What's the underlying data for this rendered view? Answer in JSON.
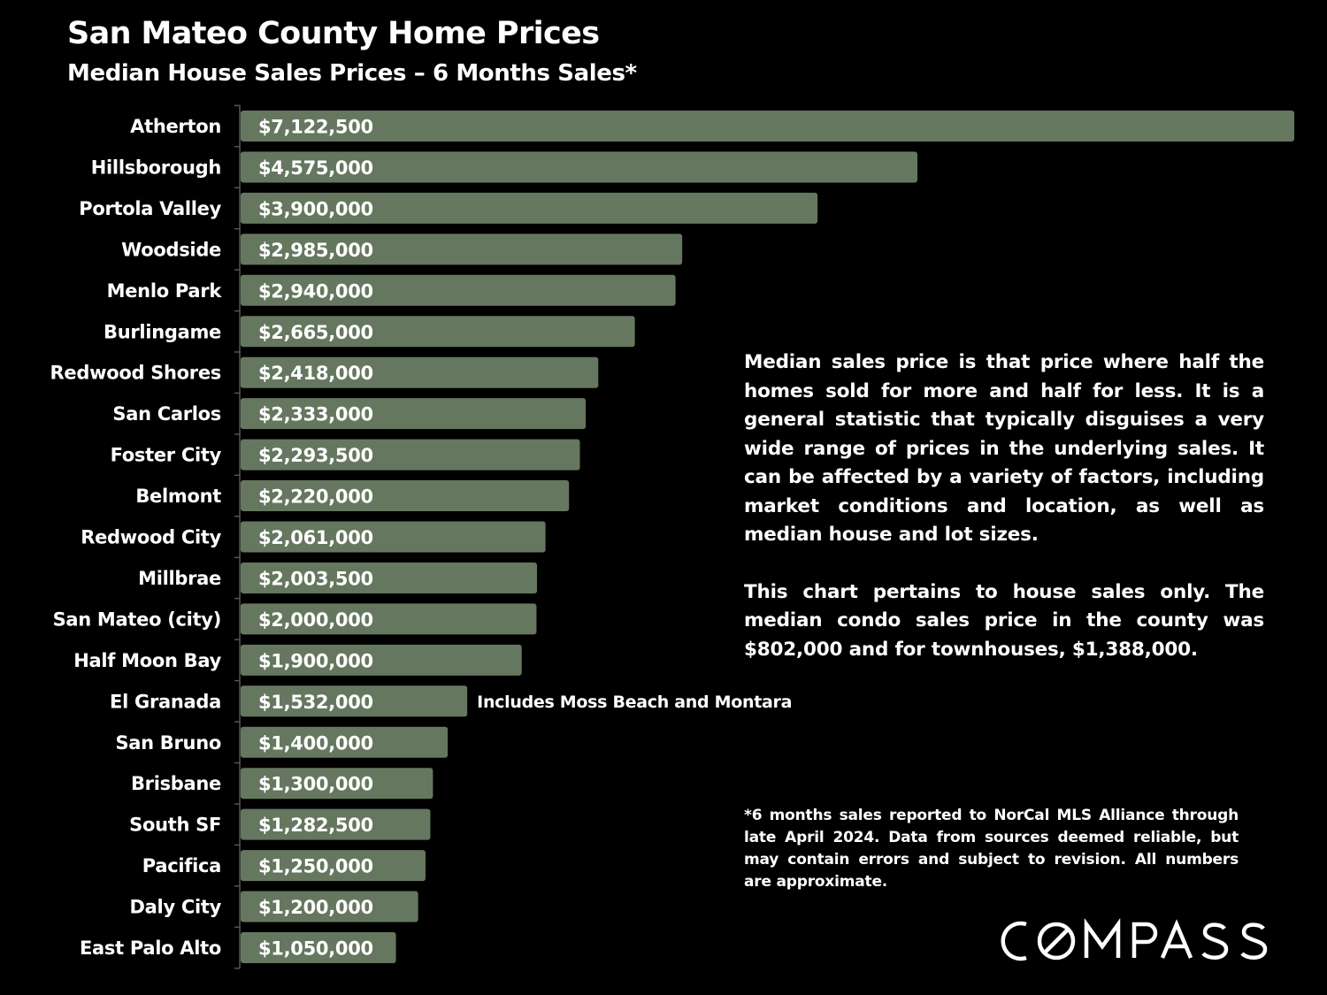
{
  "header": {
    "title": "San Mateo County Home Prices",
    "subtitle": "Median House Sales Prices – 6 Months Sales*"
  },
  "description": {
    "paragraph1": "Median sales price is that price where half the homes sold for more and half for less. It is a general statistic that typically disguises a very wide range of prices in the underlying sales. It can be affected by a variety of factors, including market conditions and location, as well as median house and lot sizes.",
    "paragraph2": "This chart pertains to house sales only. The median condo sales price in the county was $802,000 and for townhouses, $1,388,000."
  },
  "footnote": "*6 months sales reported to NorCal MLS Alliance through late April 2024. Data from sources deemed reliable, but may contain errors and subject to revision. All numbers are approximate.",
  "brand": {
    "logo_text": "COMPASS"
  },
  "colors": {
    "background": "#000000",
    "bar": "#65775f",
    "text": "#ffffff",
    "axis": "#555555"
  },
  "chart_data": {
    "type": "bar",
    "orientation": "horizontal",
    "title": "San Mateo County Home Prices",
    "subtitle": "Median House Sales Prices – 6 Months Sales*",
    "categories": [
      "Atherton",
      "Hillsborough",
      "Portola Valley",
      "Woodside",
      "Menlo Park",
      "Burlingame",
      "Redwood Shores",
      "San Carlos",
      "Foster City",
      "Belmont",
      "Redwood City",
      "Millbrae",
      "San Mateo (city)",
      "Half Moon Bay",
      "El Granada",
      "San Bruno",
      "Brisbane",
      "South SF",
      "Pacifica",
      "Daly City",
      "East Palo Alto"
    ],
    "values": [
      7122500,
      4575000,
      3900000,
      2985000,
      2940000,
      2665000,
      2418000,
      2333000,
      2293500,
      2220000,
      2061000,
      2003500,
      2000000,
      1900000,
      1532000,
      1400000,
      1300000,
      1282500,
      1250000,
      1200000,
      1050000
    ],
    "value_labels": [
      "$7,122,500",
      "$4,575,000",
      "$3,900,000",
      "$2,985,000",
      "$2,940,000",
      "$2,665,000",
      "$2,418,000",
      "$2,333,000",
      "$2,293,500",
      "$2,220,000",
      "$2,061,000",
      "$2,003,500",
      "$2,000,000",
      "$1,900,000",
      "$1,532,000",
      "$1,400,000",
      "$1,300,000",
      "$1,282,500",
      "$1,250,000",
      "$1,200,000",
      "$1,050,000"
    ],
    "annotations": [
      {
        "category": "El Granada",
        "text": "Includes Moss Beach and Montara"
      }
    ],
    "xlim": [
      0,
      7122500
    ],
    "grid": false,
    "legend": "none"
  }
}
